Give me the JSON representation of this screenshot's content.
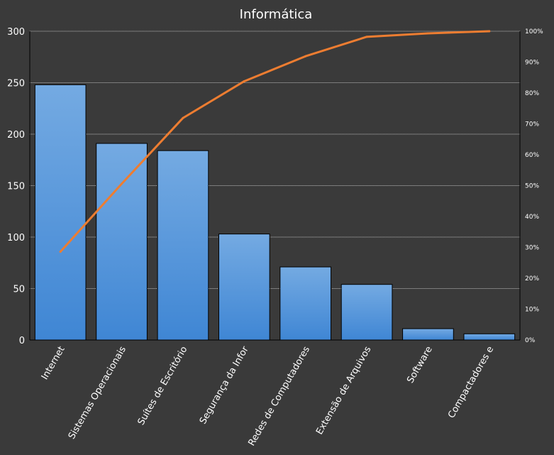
{
  "chart_data": {
    "type": "bar",
    "title": "Informática",
    "categories": [
      "Internet",
      "Sistemas Operacionais",
      "Suítes de Escritório",
      "Segurança da Infor",
      "Redes de Computadores",
      "Extensão de Arquivos",
      "Software",
      "Compactadores e"
    ],
    "series": [
      {
        "type": "bar",
        "values": [
          248,
          191,
          184,
          103,
          71,
          54,
          11,
          6
        ]
      },
      {
        "type": "line",
        "axis": "right",
        "values": [
          28.6,
          50.6,
          71.9,
          83.8,
          91.9,
          98.2,
          99.3,
          100
        ]
      }
    ],
    "ylim": [
      0,
      300
    ],
    "yticks": [
      "0",
      "50",
      "100",
      "150",
      "200",
      "250",
      "300"
    ],
    "y2lim": [
      0,
      100
    ],
    "y2ticks": [
      "0%",
      "10%",
      "20%",
      "30%",
      "40%",
      "50%",
      "60%",
      "70%",
      "80%",
      "90%",
      "100%"
    ],
    "grid": true,
    "colors": {
      "bar": "#4a90d9",
      "bar_light": "#76aee6",
      "line": "#ed7d31",
      "background": "#3a3a3a",
      "text": "#ffffff"
    }
  }
}
